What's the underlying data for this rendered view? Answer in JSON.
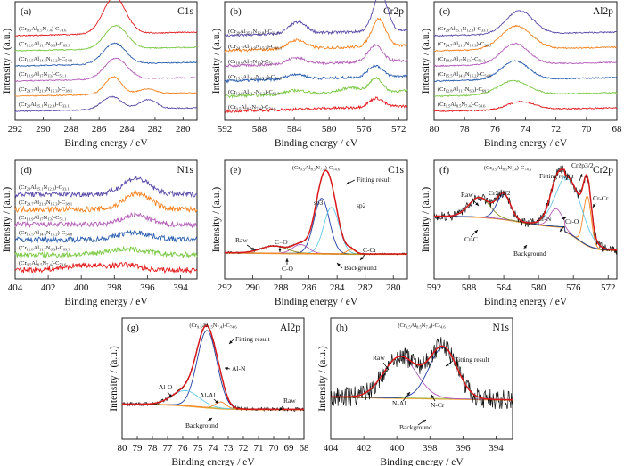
{
  "figure": {
    "samples": [
      {
        "label": "(Cr29Al25.1N12.8)-C33.1",
        "color": "#5a4aa8"
      },
      {
        "label": "(Cr24.7Al21.9N15.3)-C38.1",
        "color": "#f5821f"
      },
      {
        "label": "(Cr18.9Al17N13)-C51.1",
        "color": "#b45cb9"
      },
      {
        "label": "(Cr15.5Al14.6N15.2)-C54.8",
        "color": "#2b5fb0"
      },
      {
        "label": "(Cr12.8Al11.7N6.3)-C69.3",
        "color": "#7ac943"
      },
      {
        "label": "(Cr9.5Al8.5N7.4)-C74.6",
        "color": "#e31a1c"
      }
    ],
    "fit_header": "(Cr9.5Al8.5N7.4)-C74.6"
  },
  "chart_data": [
    {
      "id": "a",
      "panel_label": "(a)",
      "type": "line",
      "core_level": "C1s",
      "xlabel": "Binding energy / eV",
      "ylabel": "Intensity / (a.u.)",
      "xlim": [
        292,
        279
      ],
      "xticks": [
        292,
        290,
        288,
        286,
        284,
        282,
        280
      ],
      "series_order": "bottom-to-top: C33.1, C38.1, C51.1, C54.8, C69.3, C74.6",
      "series": [
        {
          "name": "(Cr29Al25.1N12.8)-C33.1",
          "peaks": [
            {
              "center": 285.1,
              "height": 0.55,
              "width": 0.7
            },
            {
              "center": 282.5,
              "height": 0.4,
              "width": 0.6
            }
          ]
        },
        {
          "name": "(Cr24.7Al21.9N15.3)-C38.1",
          "peaks": [
            {
              "center": 285.0,
              "height": 0.75,
              "width": 0.6
            },
            {
              "center": 282.6,
              "height": 0.2,
              "width": 0.6
            }
          ]
        },
        {
          "name": "(Cr18.9Al17N13)-C51.1",
          "peaks": [
            {
              "center": 284.8,
              "height": 0.9,
              "width": 0.8
            }
          ]
        },
        {
          "name": "(Cr15.5Al14.6N15.2)-C54.8",
          "peaks": [
            {
              "center": 284.9,
              "height": 0.9,
              "width": 0.8
            }
          ]
        },
        {
          "name": "(Cr12.8Al11.7N6.3)-C69.3",
          "peaks": [
            {
              "center": 284.8,
              "height": 1.0,
              "width": 0.8
            }
          ]
        },
        {
          "name": "(Cr9.5Al8.5N7.4)-C74.6",
          "peaks": [
            {
              "center": 284.9,
              "height": 1.6,
              "width": 0.8
            }
          ]
        }
      ]
    },
    {
      "id": "b",
      "panel_label": "(b)",
      "type": "line",
      "core_level": "Cr2p",
      "xlabel": "Binding energy / eV",
      "ylabel": "Intensity / (a.u.)",
      "xlim": [
        592,
        571
      ],
      "xticks": [
        592,
        588,
        584,
        580,
        576,
        572
      ],
      "series_order": "top-to-bottom: C33.1, C38.1, C51.1, C54.8, C69.3, C74.6",
      "series": [
        {
          "name": "(Cr29Al25.1N12.8)-C33.1",
          "peaks": [
            {
              "center": 583.6,
              "height": 0.45,
              "width": 1.0
            },
            {
              "center": 574.1,
              "height": 1.5,
              "width": 0.8
            }
          ]
        },
        {
          "name": "(Cr24.7Al21.9N15.3)-C38.1",
          "peaks": [
            {
              "center": 583.7,
              "height": 0.35,
              "width": 1.0
            },
            {
              "center": 574.3,
              "height": 1.1,
              "width": 0.8
            }
          ]
        },
        {
          "name": "(Cr18.9Al17N13)-C51.1",
          "peaks": [
            {
              "center": 583.8,
              "height": 0.25,
              "width": 1.0
            },
            {
              "center": 574.7,
              "height": 0.65,
              "width": 0.8
            }
          ]
        },
        {
          "name": "(Cr15.5Al14.6N15.2)-C54.8",
          "peaks": [
            {
              "center": 583.8,
              "height": 0.2,
              "width": 1.0
            },
            {
              "center": 574.7,
              "height": 0.45,
              "width": 0.8
            }
          ]
        },
        {
          "name": "(Cr12.8Al11.7N6.3)-C69.3",
          "peaks": [
            {
              "center": 583.8,
              "height": 0.15,
              "width": 1.2
            },
            {
              "center": 577.5,
              "height": 0.2,
              "width": 1.2
            },
            {
              "center": 574.6,
              "height": 0.55,
              "width": 0.7
            }
          ]
        },
        {
          "name": "(Cr9.5Al8.5N7.4)-C74.6",
          "peaks": [
            {
              "center": 574.6,
              "height": 0.35,
              "width": 0.8
            }
          ]
        }
      ]
    },
    {
      "id": "c",
      "panel_label": "(c)",
      "type": "line",
      "core_level": "Al2p",
      "xlabel": "Binding energy / eV",
      "ylabel": "Intensity / (a.u.)",
      "xlim": [
        80,
        68
      ],
      "xticks": [
        80,
        78,
        76,
        74,
        72,
        70,
        68
      ],
      "series_order": "top-to-bottom: C33.1, C38.1, C51.1, C54.8, C69.3, C74.6",
      "series": [
        {
          "name": "(Cr29Al25.1N12.8)-C33.1",
          "peaks": [
            {
              "center": 74.4,
              "height": 1.0,
              "width": 0.9
            }
          ]
        },
        {
          "name": "(Cr24.7Al21.9N15.3)-C38.1",
          "peaks": [
            {
              "center": 74.6,
              "height": 1.0,
              "width": 1.0
            }
          ]
        },
        {
          "name": "(Cr18.9Al17N13)-C51.1",
          "peaks": [
            {
              "center": 74.7,
              "height": 0.9,
              "width": 0.9
            }
          ]
        },
        {
          "name": "(Cr15.5Al14.6N15.2)-C54.8",
          "peaks": [
            {
              "center": 74.7,
              "height": 0.8,
              "width": 0.9
            }
          ]
        },
        {
          "name": "(Cr12.8Al11.7N6.3)-C69.3",
          "peaks": [
            {
              "center": 74.8,
              "height": 0.6,
              "width": 1.0
            }
          ]
        },
        {
          "name": "(Cr9.5Al8.5N7.4)-C74.6",
          "peaks": [
            {
              "center": 74.3,
              "height": 0.35,
              "width": 0.9
            }
          ]
        }
      ]
    },
    {
      "id": "d",
      "panel_label": "(d)",
      "type": "line",
      "core_level": "N1s",
      "xlabel": "Binding energy / eV",
      "ylabel": "Intensity / (a.u.)",
      "xlim": [
        404,
        393
      ],
      "xticks": [
        404,
        402,
        400,
        398,
        396,
        394
      ],
      "series_order": "top-to-bottom: C33.1, C38.1, C51.1, C54.8, C69.3, C74.6",
      "series": [
        {
          "name": "(Cr29Al25.1N12.8)-C33.1",
          "peaks": [
            {
              "center": 396.7,
              "height": 1.0,
              "width": 0.8
            }
          ]
        },
        {
          "name": "(Cr24.7Al21.9N15.3)-C38.1",
          "peaks": [
            {
              "center": 396.6,
              "height": 1.0,
              "width": 0.8
            }
          ]
        },
        {
          "name": "(Cr18.9Al17N13)-C51.1",
          "peaks": [
            {
              "center": 396.7,
              "height": 0.6,
              "width": 0.8
            }
          ]
        },
        {
          "name": "(Cr15.5Al14.6N15.2)-C54.8",
          "peaks": [
            {
              "center": 396.8,
              "height": 0.45,
              "width": 1.0
            }
          ]
        },
        {
          "name": "(Cr12.8Al11.7N6.3)-C69.3",
          "peaks": [
            {
              "center": 397.3,
              "height": 0.35,
              "width": 1.2
            }
          ]
        },
        {
          "name": "(Cr9.5Al8.5N7.4)-C74.6",
          "peaks": [
            {
              "center": 399.8,
              "height": 0.3,
              "width": 1.2
            },
            {
              "center": 397.2,
              "height": 0.3,
              "width": 0.8
            }
          ]
        }
      ]
    },
    {
      "id": "e",
      "panel_label": "(e)",
      "type": "line",
      "core_level": "C1s",
      "header": "(Cr9.5Al8.5N7.4)-C74.6",
      "xlabel": "Binding energy / eV",
      "ylabel": "Intensity / (a.u.)",
      "xlim": [
        292,
        279
      ],
      "xticks": [
        292,
        290,
        288,
        286,
        284,
        282,
        280
      ],
      "components": [
        {
          "name": "sp3",
          "center": 285.1,
          "height": 0.62,
          "width": 0.55,
          "color": "#1f3fa0"
        },
        {
          "name": "sp2",
          "center": 284.4,
          "height": 0.52,
          "width": 0.55,
          "color": "#66c8e8"
        },
        {
          "name": "C-O",
          "center": 286.6,
          "height": 0.1,
          "width": 0.55,
          "color": "#b45cb9"
        },
        {
          "name": "C=O",
          "center": 288.5,
          "height": 0.08,
          "width": 0.9,
          "color": "#8a8a20"
        },
        {
          "name": "C-Cr",
          "center": 283.0,
          "height": 0.05,
          "width": 0.3,
          "color": "#f5821f"
        }
      ],
      "annotations": [
        "Fitting result",
        "sp3",
        "sp2",
        "Raw",
        "C=O",
        "C-O",
        "C-Cr",
        "Background"
      ]
    },
    {
      "id": "f",
      "panel_label": "(f)",
      "type": "line",
      "core_level": "Cr2p",
      "header": "(Cr9.5Al8.5N7.4)-C74.6",
      "xlabel": "Binding energy / eV",
      "ylabel": "Intensity / (a.u.)",
      "xlim": [
        592,
        571
      ],
      "xticks": [
        592,
        588,
        584,
        580,
        576,
        572
      ],
      "components": [
        {
          "name": "Cr-Cr",
          "center": 574.4,
          "height": 0.5,
          "width": 0.45,
          "color": "#f5821f"
        },
        {
          "name": "Cr-N",
          "center": 576.5,
          "height": 0.55,
          "width": 1.5,
          "color": "#66c8e8"
        },
        {
          "name": "Cr-O",
          "center": 578.0,
          "height": 0.18,
          "width": 0.7,
          "color": "#b45cb9"
        },
        {
          "name": "Cr-C",
          "center": 586.8,
          "height": 0.2,
          "width": 1.2,
          "color": "#8a8a20"
        },
        {
          "name": "Cr2p1/2",
          "center": 584.0,
          "height": 0.25,
          "width": 0.8,
          "color": "#1f3fa0"
        }
      ],
      "annotations": [
        "Raw",
        "Cr2p1/2",
        "Cr2p3/2",
        "Fitting result",
        "Cr-N",
        "Cr-O",
        "Cr-Cr",
        "Cr-C",
        "Background"
      ]
    },
    {
      "id": "g",
      "panel_label": "(g)",
      "type": "line",
      "core_level": "Al2p",
      "header": "(Cr9.5Al8.5N7.4)-C74.6",
      "xlabel": "Binding energy / eV",
      "ylabel": "Intensity / (a.u.)",
      "xlim": [
        80,
        68
      ],
      "xticks": [
        80,
        79,
        78,
        77,
        76,
        75,
        74,
        73,
        72,
        71,
        70,
        69,
        68
      ],
      "components": [
        {
          "name": "Al-N",
          "center": 74.4,
          "height": 0.72,
          "width": 0.65,
          "color": "#1f3fa0"
        },
        {
          "name": "Al-O",
          "center": 75.8,
          "height": 0.14,
          "width": 0.9,
          "color": "#66c8e8"
        },
        {
          "name": "Al-Al",
          "center": 73.5,
          "height": 0.06,
          "width": 0.35,
          "color": "#f5821f"
        }
      ],
      "annotations": [
        "Fitting result",
        "Al-N",
        "Al-O",
        "Al-Al",
        "Raw",
        "Background"
      ]
    },
    {
      "id": "h",
      "panel_label": "(h)",
      "type": "line",
      "core_level": "N1s",
      "header": "(Cr9.5Al8.5N7.4)-C74.6",
      "xlabel": "Binding energy / eV",
      "ylabel": "Intensity / (a.u.)",
      "xlim": [
        404,
        393
      ],
      "xticks": [
        404,
        402,
        400,
        398,
        396,
        394
      ],
      "components": [
        {
          "name": "N-Al",
          "center": 399.8,
          "height": 0.42,
          "width": 1.0,
          "color": "#b45cb9"
        },
        {
          "name": "N-Cr",
          "center": 397.2,
          "height": 0.52,
          "width": 0.85,
          "color": "#1f3fa0"
        }
      ],
      "annotations": [
        "Raw",
        "Fitting result",
        "N-Al",
        "N-Cr",
        "Background"
      ]
    }
  ]
}
